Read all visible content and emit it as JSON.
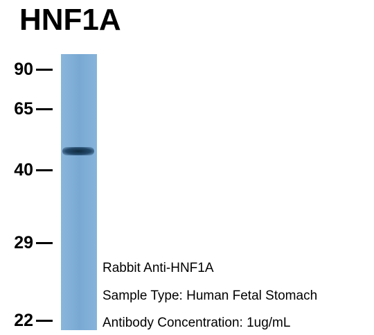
{
  "header": {
    "title": "HNF1A"
  },
  "markers": [
    "90",
    "65",
    "40",
    "29",
    "22"
  ],
  "annotations": [
    "Rabbit Anti-HNF1A",
    "Sample Type: Human Fetal Stomach",
    "Antibody Concentration: 1ug/mL"
  ]
}
